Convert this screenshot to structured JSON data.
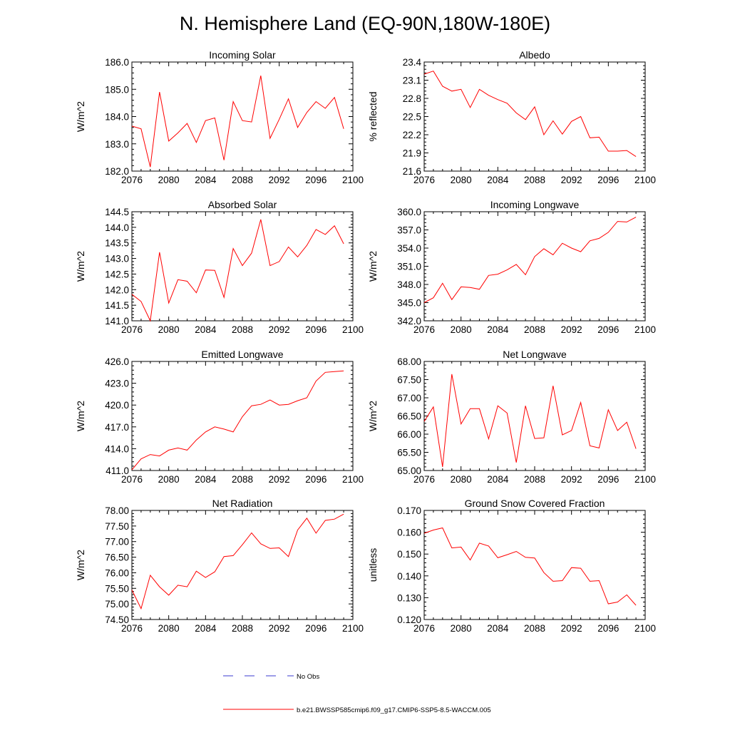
{
  "main_title": "N. Hemisphere Land (EQ-90N,180W-180E)",
  "colors": {
    "series": "#ff0000",
    "obs": "#3b3bcf",
    "axis": "#000000",
    "background": "#ffffff"
  },
  "legend": {
    "obs_label": "No Obs",
    "model_label": "b.e21.BWSSP585cmip6.f09_g17.CMIP6-SSP5-8.5-WACCM.005"
  },
  "chart_data": [
    {
      "type": "line",
      "title": "Incoming Solar",
      "xlabel": "",
      "ylabel": "W/m^2",
      "xlim": [
        2076,
        2100
      ],
      "ylim": [
        182.0,
        186.0
      ],
      "x_ticks": [
        2076,
        2080,
        2084,
        2088,
        2092,
        2096,
        2100
      ],
      "x_tick_labels": [
        "2076",
        "2080",
        "2084",
        "2088",
        "2092",
        "2096",
        "2100"
      ],
      "y_ticks": [
        182.0,
        183.0,
        184.0,
        185.0,
        186.0
      ],
      "y_tick_labels": [
        "182.0",
        "183.0",
        "184.0",
        "185.0",
        "186.0"
      ],
      "x": [
        2076,
        2077,
        2078,
        2079,
        2080,
        2081,
        2082,
        2083,
        2084,
        2085,
        2086,
        2087,
        2088,
        2089,
        2090,
        2091,
        2092,
        2093,
        2094,
        2095,
        2096,
        2097,
        2098,
        2099
      ],
      "values": [
        183.65,
        183.55,
        182.15,
        184.9,
        183.1,
        183.4,
        183.75,
        183.05,
        183.85,
        183.95,
        182.4,
        184.55,
        183.85,
        183.8,
        185.5,
        183.2,
        183.9,
        184.65,
        183.6,
        184.15,
        184.55,
        184.3,
        184.7,
        183.55
      ]
    },
    {
      "type": "line",
      "title": "Albedo",
      "xlabel": "",
      "ylabel": "% reflected",
      "xlim": [
        2076,
        2100
      ],
      "ylim": [
        21.6,
        23.4
      ],
      "x_ticks": [
        2076,
        2080,
        2084,
        2088,
        2092,
        2096,
        2100
      ],
      "x_tick_labels": [
        "2076",
        "2080",
        "2084",
        "2088",
        "2092",
        "2096",
        "2100"
      ],
      "y_ticks": [
        21.6,
        21.9,
        22.2,
        22.5,
        22.8,
        23.1,
        23.4
      ],
      "y_tick_labels": [
        "21.6",
        "21.9",
        "22.2",
        "22.5",
        "22.8",
        "23.1",
        "23.4"
      ],
      "x": [
        2076,
        2077,
        2078,
        2079,
        2080,
        2081,
        2082,
        2083,
        2084,
        2085,
        2086,
        2087,
        2088,
        2089,
        2090,
        2091,
        2092,
        2093,
        2094,
        2095,
        2096,
        2097,
        2098,
        2099
      ],
      "values": [
        23.2,
        23.25,
        23.0,
        22.92,
        22.95,
        22.65,
        22.95,
        22.85,
        22.78,
        22.72,
        22.56,
        22.45,
        22.66,
        22.2,
        22.43,
        22.21,
        22.42,
        22.5,
        22.15,
        22.16,
        21.93,
        21.93,
        21.94,
        21.84
      ]
    },
    {
      "type": "line",
      "title": "Absorbed Solar",
      "xlabel": "",
      "ylabel": "W/m^2",
      "xlim": [
        2076,
        2100
      ],
      "ylim": [
        141.0,
        144.5
      ],
      "x_ticks": [
        2076,
        2080,
        2084,
        2088,
        2092,
        2096,
        2100
      ],
      "x_tick_labels": [
        "2076",
        "2080",
        "2084",
        "2088",
        "2092",
        "2096",
        "2100"
      ],
      "y_ticks": [
        141.0,
        141.5,
        142.0,
        142.5,
        143.0,
        143.5,
        144.0,
        144.5
      ],
      "y_tick_labels": [
        "141.0",
        "141.5",
        "142.0",
        "142.5",
        "143.0",
        "143.5",
        "144.0",
        "144.5"
      ],
      "x": [
        2076,
        2077,
        2078,
        2079,
        2080,
        2081,
        2082,
        2083,
        2084,
        2085,
        2086,
        2087,
        2088,
        2089,
        2090,
        2091,
        2092,
        2093,
        2094,
        2095,
        2096,
        2097,
        2098,
        2099
      ],
      "values": [
        141.85,
        141.62,
        141.0,
        143.2,
        141.57,
        142.32,
        142.27,
        141.9,
        142.63,
        142.62,
        141.75,
        143.32,
        142.77,
        143.17,
        144.25,
        142.77,
        142.9,
        143.37,
        143.05,
        143.42,
        143.93,
        143.77,
        144.05,
        143.47
      ]
    },
    {
      "type": "line",
      "title": "Incoming Longwave",
      "xlabel": "",
      "ylabel": "W/m^2",
      "xlim": [
        2076,
        2100
      ],
      "ylim": [
        342.0,
        360.0
      ],
      "x_ticks": [
        2076,
        2080,
        2084,
        2088,
        2092,
        2096,
        2100
      ],
      "x_tick_labels": [
        "2076",
        "2080",
        "2084",
        "2088",
        "2092",
        "2096",
        "2100"
      ],
      "y_ticks": [
        342.0,
        345.0,
        348.0,
        351.0,
        354.0,
        357.0,
        360.0
      ],
      "y_tick_labels": [
        "342.0",
        "345.0",
        "348.0",
        "351.0",
        "354.0",
        "357.0",
        "360.0"
      ],
      "x": [
        2076,
        2077,
        2078,
        2079,
        2080,
        2081,
        2082,
        2083,
        2084,
        2085,
        2086,
        2087,
        2088,
        2089,
        2090,
        2091,
        2092,
        2093,
        2094,
        2095,
        2096,
        2097,
        2098,
        2099
      ],
      "values": [
        345.0,
        345.8,
        348.2,
        345.5,
        347.6,
        347.5,
        347.2,
        349.5,
        349.7,
        350.4,
        351.3,
        349.6,
        352.6,
        353.9,
        352.9,
        354.8,
        354.0,
        353.4,
        355.2,
        355.6,
        356.6,
        358.4,
        358.3,
        359.1
      ]
    },
    {
      "type": "line",
      "title": "Emitted Longwave",
      "xlabel": "",
      "ylabel": "W/m^2",
      "xlim": [
        2076,
        2100
      ],
      "ylim": [
        411.0,
        426.0
      ],
      "x_ticks": [
        2076,
        2080,
        2084,
        2088,
        2092,
        2096,
        2100
      ],
      "x_tick_labels": [
        "2076",
        "2080",
        "2084",
        "2088",
        "2092",
        "2096",
        "2100"
      ],
      "y_ticks": [
        411.0,
        414.0,
        417.0,
        420.0,
        423.0,
        426.0
      ],
      "y_tick_labels": [
        "411.0",
        "414.0",
        "417.0",
        "420.0",
        "423.0",
        "426.0"
      ],
      "x": [
        2076,
        2077,
        2078,
        2079,
        2080,
        2081,
        2082,
        2083,
        2084,
        2085,
        2086,
        2087,
        2088,
        2089,
        2090,
        2091,
        2092,
        2093,
        2094,
        2095,
        2096,
        2097,
        2098,
        2099
      ],
      "values": [
        411.1,
        412.6,
        413.2,
        413.0,
        413.8,
        414.1,
        413.8,
        415.2,
        416.3,
        417.0,
        416.7,
        416.3,
        418.4,
        419.9,
        420.1,
        420.7,
        420.0,
        420.1,
        420.6,
        421.0,
        423.3,
        424.5,
        424.6,
        424.7
      ]
    },
    {
      "type": "line",
      "title": "Net Longwave",
      "xlabel": "",
      "ylabel": "W/m^2",
      "xlim": [
        2076,
        2100
      ],
      "ylim": [
        65.0,
        68.0
      ],
      "x_ticks": [
        2076,
        2080,
        2084,
        2088,
        2092,
        2096,
        2100
      ],
      "x_tick_labels": [
        "2076",
        "2080",
        "2084",
        "2088",
        "2092",
        "2096",
        "2100"
      ],
      "y_ticks": [
        65.0,
        65.5,
        66.0,
        66.5,
        67.0,
        67.5,
        68.0
      ],
      "y_tick_labels": [
        "65.00",
        "65.50",
        "66.00",
        "66.50",
        "67.00",
        "67.50",
        "68.00"
      ],
      "x": [
        2076,
        2077,
        2078,
        2079,
        2080,
        2081,
        2082,
        2083,
        2084,
        2085,
        2086,
        2087,
        2088,
        2089,
        2090,
        2091,
        2092,
        2093,
        2094,
        2095,
        2096,
        2097,
        2098,
        2099
      ],
      "values": [
        66.35,
        66.75,
        65.1,
        67.65,
        66.28,
        66.7,
        66.7,
        65.87,
        66.78,
        66.58,
        65.22,
        66.78,
        65.88,
        65.9,
        67.33,
        65.98,
        66.1,
        66.87,
        65.68,
        65.62,
        66.67,
        66.1,
        66.33,
        65.6
      ]
    },
    {
      "type": "line",
      "title": "Net Radiation",
      "xlabel": "",
      "ylabel": "W/m^2",
      "xlim": [
        2076,
        2100
      ],
      "ylim": [
        74.5,
        78.0
      ],
      "x_ticks": [
        2076,
        2080,
        2084,
        2088,
        2092,
        2096,
        2100
      ],
      "x_tick_labels": [
        "2076",
        "2080",
        "2084",
        "2088",
        "2092",
        "2096",
        "2100"
      ],
      "y_ticks": [
        74.5,
        75.0,
        75.5,
        76.0,
        76.5,
        77.0,
        77.5,
        78.0
      ],
      "y_tick_labels": [
        "74.50",
        "75.00",
        "75.50",
        "76.00",
        "76.50",
        "77.00",
        "77.50",
        "78.00"
      ],
      "x": [
        2076,
        2077,
        2078,
        2079,
        2080,
        2081,
        2082,
        2083,
        2084,
        2085,
        2086,
        2087,
        2088,
        2089,
        2090,
        2091,
        2092,
        2093,
        2094,
        2095,
        2096,
        2097,
        2098,
        2099
      ],
      "values": [
        75.45,
        74.85,
        75.92,
        75.55,
        75.28,
        75.6,
        75.55,
        76.05,
        75.85,
        76.03,
        76.52,
        76.55,
        76.9,
        77.28,
        76.93,
        76.78,
        76.8,
        76.52,
        77.37,
        77.75,
        77.27,
        77.68,
        77.72,
        77.88
      ]
    },
    {
      "type": "line",
      "title": "Ground Snow Covered Fraction",
      "xlabel": "",
      "ylabel": "unitless",
      "xlim": [
        2076,
        2100
      ],
      "ylim": [
        0.12,
        0.17
      ],
      "x_ticks": [
        2076,
        2080,
        2084,
        2088,
        2092,
        2096,
        2100
      ],
      "x_tick_labels": [
        "2076",
        "2080",
        "2084",
        "2088",
        "2092",
        "2096",
        "2100"
      ],
      "y_ticks": [
        0.12,
        0.13,
        0.14,
        0.15,
        0.16,
        0.17
      ],
      "y_tick_labels": [
        "0.120",
        "0.130",
        "0.140",
        "0.150",
        "0.160",
        "0.170"
      ],
      "x": [
        2076,
        2077,
        2078,
        2079,
        2080,
        2081,
        2082,
        2083,
        2084,
        2085,
        2086,
        2087,
        2088,
        2089,
        2090,
        2091,
        2092,
        2093,
        2094,
        2095,
        2096,
        2097,
        2098,
        2099
      ],
      "values": [
        0.1595,
        0.161,
        0.162,
        0.1528,
        0.1532,
        0.1473,
        0.155,
        0.1537,
        0.1483,
        0.1497,
        0.1512,
        0.1485,
        0.1482,
        0.1415,
        0.1375,
        0.1378,
        0.1438,
        0.1435,
        0.1375,
        0.1378,
        0.1272,
        0.128,
        0.1313,
        0.1265
      ]
    }
  ]
}
